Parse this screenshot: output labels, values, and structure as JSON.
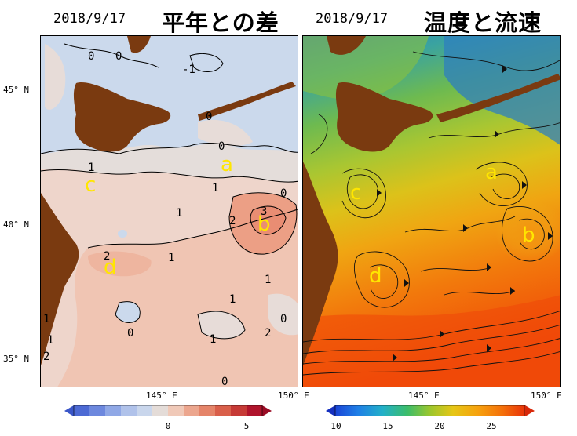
{
  "left_panel": {
    "date": "2018/9/17",
    "title": "平年との差",
    "lat_labels": [
      "45° N",
      "40° N",
      "35° N"
    ],
    "lon_labels": [
      "145° E",
      "150° E"
    ],
    "colorbar_ticks": [
      "0",
      "5"
    ],
    "region_labels": [
      "a",
      "b",
      "c",
      "d"
    ],
    "contour_labels": [
      "0",
      "0",
      "-1",
      "0",
      "0",
      "1",
      "1",
      "1",
      "2",
      "3",
      "2",
      "1",
      "1",
      "1",
      "0",
      "1",
      "1",
      "2",
      "2",
      "0",
      "1",
      "0",
      "0"
    ]
  },
  "right_panel": {
    "date": "2018/9/17",
    "title": "温度と流速",
    "lon_labels": [
      "145° E",
      "150° E"
    ],
    "colorbar_ticks": [
      "10",
      "15",
      "20",
      "25"
    ],
    "region_labels": [
      "a",
      "b",
      "c",
      "d"
    ]
  },
  "colors": {
    "land": "#7a3a10",
    "label_yellow": "#ffe600",
    "anomaly_cold": "#c9d9ee",
    "anomaly_zero": "#e6dedc",
    "anomaly_warm1": "#f2c9b9",
    "anomaly_warm2": "#eea48d"
  }
}
